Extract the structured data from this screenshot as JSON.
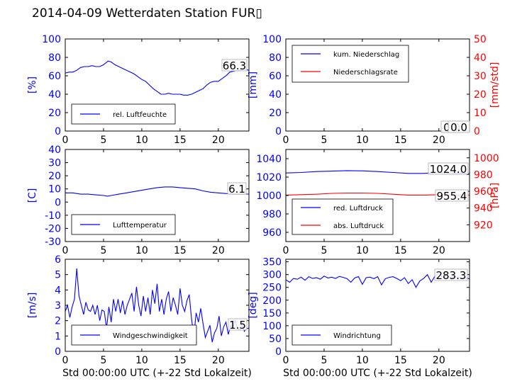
{
  "title": "2014-04-09 Wetterdaten Station FUR▯",
  "colors": {
    "left_axis": "#0000ff",
    "right_axis": "#ff0000",
    "frame": "#000000"
  },
  "chart_data": [
    {
      "type": "line",
      "id": "humidity",
      "ylabel": "[%]",
      "xlim": [
        0,
        24
      ],
      "ylim": [
        0,
        100
      ],
      "xticks": [
        0,
        5,
        10,
        15,
        20
      ],
      "yticks": [
        0,
        20,
        40,
        60,
        80,
        100
      ],
      "latest_label": "66.3",
      "legend": {
        "placement": "lower-left",
        "entries": [
          "rel. Luftfeuchte"
        ]
      },
      "series": [
        {
          "name": "rel. Luftfeuchte",
          "color": "#0000ff",
          "x": [
            0,
            0.5,
            1,
            1.5,
            2,
            2.5,
            3,
            3.5,
            4,
            4.5,
            5,
            5.3,
            5.6,
            6,
            6.5,
            7,
            7.5,
            8,
            8.5,
            9,
            9.5,
            10,
            10.5,
            11,
            11.5,
            12,
            12.5,
            13,
            13.5,
            14,
            14.5,
            15,
            15.5,
            16,
            16.5,
            17,
            17.5,
            18,
            18.5,
            19,
            19.5,
            20,
            20.5,
            21,
            21.5,
            22,
            22.5,
            23,
            23.5,
            24
          ],
          "y": [
            63,
            64,
            64,
            66,
            69,
            70,
            70,
            71,
            70,
            70,
            72,
            74,
            76,
            75,
            72,
            70,
            68,
            66,
            64,
            62,
            59,
            56,
            54,
            50,
            46,
            43,
            40,
            40,
            41,
            40,
            40,
            40,
            39,
            39,
            40,
            42,
            44,
            46,
            50,
            53,
            54,
            54,
            57,
            60,
            64,
            65,
            66,
            66,
            67,
            66
          ]
        }
      ]
    },
    {
      "type": "line",
      "id": "precipitation",
      "ylabel": "[mm]",
      "y2label": "[mm/std]",
      "xlim": [
        0,
        24
      ],
      "ylim": [
        0,
        100
      ],
      "y2lim": [
        0,
        50
      ],
      "xticks": [
        0,
        5,
        10,
        15,
        20
      ],
      "yticks": [
        0,
        20,
        40,
        60,
        80,
        100
      ],
      "y2ticks": [
        0,
        10,
        20,
        30,
        40,
        50
      ],
      "latest_labels": [
        "0.0",
        "0.0"
      ],
      "legend": {
        "placement": "upper-left",
        "entries": [
          "kum. Niederschlag",
          "Niederschlagsrate"
        ]
      },
      "series": [
        {
          "name": "kum. Niederschlag",
          "color": "#0000ff",
          "axis": "left",
          "x": [
            0,
            24
          ],
          "y": [
            0,
            0
          ]
        },
        {
          "name": "Niederschlagsrate",
          "color": "#ff0000",
          "axis": "right",
          "x": [
            0,
            24
          ],
          "y": [
            0,
            0
          ]
        }
      ]
    },
    {
      "type": "line",
      "id": "temperature",
      "ylabel": "[C]",
      "xlim": [
        0,
        24
      ],
      "ylim": [
        -30,
        40
      ],
      "xticks": [
        0,
        5,
        10,
        15,
        20
      ],
      "yticks": [
        -30,
        -20,
        -10,
        0,
        10,
        20,
        30,
        40
      ],
      "latest_label": "6.1",
      "legend": {
        "placement": "lower-left",
        "entries": [
          "Lufttemperatur"
        ]
      },
      "series": [
        {
          "name": "Lufttemperatur",
          "color": "#0000ff",
          "x": [
            0,
            1,
            2,
            3,
            4,
            5,
            5.5,
            6,
            7,
            8,
            9,
            10,
            11,
            12,
            13,
            14,
            15,
            16,
            17,
            18,
            19,
            20,
            21,
            22,
            23,
            24
          ],
          "y": [
            7,
            7,
            6,
            6,
            5.5,
            5,
            4.5,
            5,
            6,
            7,
            8,
            9,
            10,
            11,
            11.5,
            11.5,
            11,
            10.5,
            10,
            8.5,
            7.5,
            7,
            6.5,
            6.2,
            6.1,
            6.1
          ]
        }
      ]
    },
    {
      "type": "line",
      "id": "pressure",
      "ylabel": "",
      "y2label": "[hPa]",
      "xlim": [
        0,
        24
      ],
      "ylim": [
        950,
        1050
      ],
      "y2lim": [
        900,
        1010
      ],
      "xticks": [
        0,
        5,
        10,
        15,
        20
      ],
      "yticks": [
        960,
        980,
        1000,
        1020,
        1040
      ],
      "y2ticks": [
        920,
        940,
        960,
        980,
        1000
      ],
      "latest_labels": [
        "1024.0",
        "955.4"
      ],
      "legend": {
        "placement": "lower-left",
        "entries": [
          "red. Luftdruck",
          "abs. Luftdruck"
        ]
      },
      "series": [
        {
          "name": "red. Luftdruck",
          "color": "#0000ff",
          "axis": "left",
          "x": [
            0,
            2,
            4,
            6,
            8,
            10,
            12,
            14,
            16,
            18,
            20,
            22,
            24
          ],
          "y": [
            1024.5,
            1025,
            1026,
            1026.5,
            1027,
            1026.8,
            1026,
            1025,
            1024,
            1024,
            1025,
            1024.5,
            1024
          ]
        },
        {
          "name": "abs. Luftdruck",
          "color": "#ff0000",
          "axis": "right",
          "x": [
            0,
            2,
            4,
            6,
            8,
            10,
            12,
            14,
            16,
            18,
            20,
            22,
            24
          ],
          "y": [
            955.5,
            956,
            956.5,
            957.5,
            958,
            958,
            957.5,
            956.5,
            955.5,
            955.5,
            956,
            955.8,
            955.4
          ]
        }
      ]
    },
    {
      "type": "line",
      "id": "windspeed",
      "ylabel": "[m/s]",
      "xlim": [
        0,
        24
      ],
      "ylim": [
        0,
        6
      ],
      "xticks": [
        0,
        5,
        10,
        15,
        20
      ],
      "yticks": [
        0,
        1,
        2,
        3,
        4,
        5,
        6
      ],
      "latest_label": "1.5",
      "legend": {
        "placement": "lower-left",
        "entries": [
          "Windgeschwindigkeit"
        ]
      },
      "series": [
        {
          "name": "Windgeschwindigkeit",
          "color": "#0000ff",
          "x": [
            0,
            0.3,
            0.6,
            0.9,
            1.2,
            1.5,
            1.8,
            2.1,
            2.4,
            2.7,
            3,
            3.3,
            3.6,
            3.9,
            4.2,
            4.5,
            4.8,
            5.1,
            5.4,
            5.7,
            6,
            6.3,
            6.6,
            6.9,
            7.2,
            7.5,
            7.8,
            8.1,
            8.4,
            8.7,
            9,
            9.3,
            9.6,
            9.9,
            10.2,
            10.5,
            10.8,
            11.1,
            11.4,
            11.7,
            12,
            12.3,
            12.6,
            12.9,
            13.2,
            13.5,
            13.8,
            14.1,
            14.4,
            14.7,
            15,
            15.3,
            15.6,
            15.9,
            16.2,
            16.5,
            16.8,
            17.1,
            17.4,
            17.7,
            18,
            18.3,
            18.6,
            18.9,
            19.2,
            19.5,
            19.8,
            20.1,
            20.4,
            20.7,
            21,
            21.3,
            21.6,
            21.9,
            22.2,
            22.5,
            22.8,
            23.1,
            23.4,
            23.7,
            24
          ],
          "y": [
            2.6,
            3.0,
            2.2,
            2.9,
            3.4,
            5.4,
            3.6,
            3.0,
            2.4,
            3.2,
            2.7,
            2.6,
            3.0,
            2.4,
            3.0,
            2.0,
            2.7,
            2.6,
            1.5,
            2.9,
            1.9,
            3.4,
            2.6,
            3.4,
            2.5,
            3.3,
            2.4,
            3.0,
            3.4,
            3.8,
            2.6,
            4.2,
            3.0,
            2.3,
            3.6,
            2.6,
            3.5,
            2.4,
            4.0,
            3.1,
            4.4,
            2.6,
            3.4,
            2.4,
            3.4,
            3.9,
            2.6,
            3.5,
            3.0,
            2.4,
            4.1,
            3.0,
            2.6,
            3.3,
            3.7,
            2.1,
            1.0,
            2.5,
            1.9,
            2.8,
            1.8,
            0.9,
            1.3,
            1.7,
            0.6,
            1.2,
            1.5,
            2.3,
            1.0,
            1.6,
            1.9,
            1.1,
            1.7,
            1.5,
            2.0,
            1.5,
            1.4,
            1.8,
            1.3,
            1.5,
            1.5
          ]
        }
      ]
    },
    {
      "type": "line",
      "id": "winddirection",
      "ylabel": "[deg]",
      "xlim": [
        0,
        24
      ],
      "ylim": [
        0,
        360
      ],
      "xticks": [
        0,
        5,
        10,
        15,
        20
      ],
      "yticks": [
        0,
        50,
        100,
        150,
        200,
        250,
        300,
        350
      ],
      "latest_label": "283.3",
      "legend": {
        "placement": "lower-left",
        "entries": [
          "Windrichtung"
        ]
      },
      "series": [
        {
          "name": "Windrichtung",
          "color": "#0000ff",
          "x": [
            0,
            0.5,
            1,
            1.5,
            2,
            2.5,
            3,
            3.5,
            4,
            4.5,
            5,
            5.5,
            6,
            6.5,
            7,
            7.5,
            8,
            8.5,
            9,
            9.5,
            10,
            10.5,
            11,
            11.5,
            12,
            12.5,
            13,
            13.5,
            14,
            14.5,
            15,
            15.5,
            16,
            16.5,
            17,
            17.5,
            18,
            18.5,
            19,
            19.5,
            20,
            20.5,
            21,
            21.5,
            22,
            22.5,
            23,
            23.5,
            24
          ],
          "y": [
            280,
            270,
            285,
            282,
            290,
            278,
            292,
            285,
            288,
            282,
            294,
            287,
            290,
            285,
            293,
            289,
            284,
            270,
            287,
            292,
            262,
            288,
            290,
            284,
            292,
            260,
            284,
            289,
            292,
            285,
            276,
            288,
            265,
            280,
            250,
            275,
            285,
            300,
            270,
            295,
            305,
            290,
            296,
            289,
            292,
            291,
            286,
            288,
            283.3
          ]
        }
      ]
    }
  ],
  "xlabel_bottom": "Std 00:00:00 UTC (+-22 Std Lokalzeit)"
}
